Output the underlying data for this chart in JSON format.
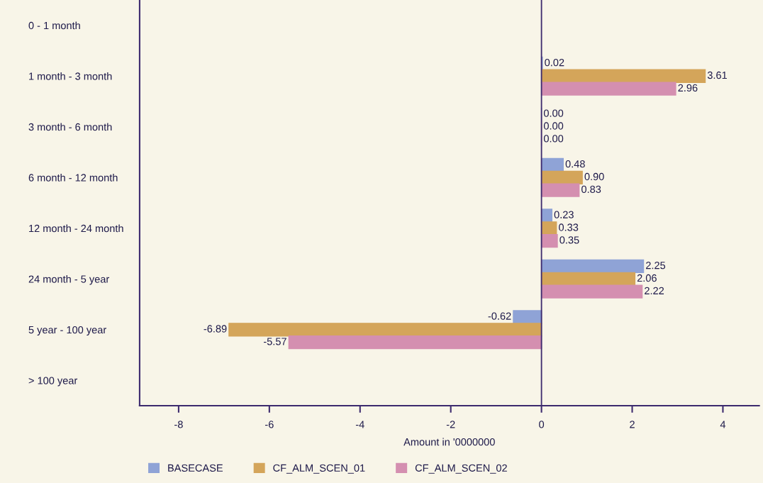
{
  "chart_data": {
    "type": "bar",
    "orientation": "horizontal",
    "xlabel": "Amount in '0000000",
    "categories": [
      "0 - 1 month",
      "1 month - 3 month",
      "3 month - 6 month",
      "6 month - 12 month",
      "12 month - 24 month",
      "24 month - 5 year",
      "5 year - 100 year",
      "> 100 year"
    ],
    "series": [
      {
        "name": "BASECASE",
        "color": "#8fa3d6",
        "values": [
          null,
          0.02,
          0.0,
          0.48,
          0.23,
          2.25,
          -0.62,
          null
        ],
        "value_labels": [
          null,
          "0.02",
          "0.00",
          "0.48",
          "0.23",
          "2.25",
          "-0.62",
          null
        ]
      },
      {
        "name": "CF_ALM_SCEN_01",
        "color": "#d4a55a",
        "values": [
          null,
          3.61,
          0.0,
          0.9,
          0.33,
          2.06,
          -6.89,
          null
        ],
        "value_labels": [
          null,
          "3.61",
          "0.00",
          "0.90",
          "0.33",
          "2.06",
          "-6.89",
          null
        ]
      },
      {
        "name": "CF_ALM_SCEN_02",
        "color": "#d48fb0",
        "values": [
          null,
          2.96,
          0.0,
          0.83,
          0.35,
          2.22,
          -5.57,
          null
        ],
        "value_labels": [
          null,
          "2.96",
          "0.00",
          "0.83",
          "0.35",
          "2.22",
          "-5.57",
          null
        ]
      }
    ],
    "xlim": [
      -8.86,
      4.8
    ],
    "xticks": [
      -8,
      -6,
      -4,
      -2,
      0,
      2,
      4
    ],
    "ref_lines": [
      {
        "axis": "x",
        "value": 0,
        "color": "#3c2a6e"
      }
    ],
    "grid": false,
    "legend": "bottom"
  }
}
